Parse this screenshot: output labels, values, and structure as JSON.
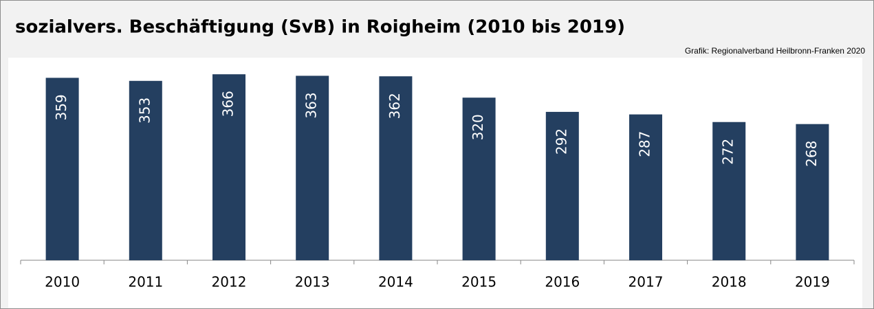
{
  "chart_data": {
    "type": "bar",
    "title": "sozialvers. Beschäftigung (SvB) in Roigheim (2010 bis 2019)",
    "source": "Grafik: Regionalverband Heilbronn-Franken 2020",
    "categories": [
      "2010",
      "2011",
      "2012",
      "2013",
      "2014",
      "2015",
      "2016",
      "2017",
      "2018",
      "2019"
    ],
    "values": [
      359,
      353,
      366,
      363,
      362,
      320,
      292,
      287,
      272,
      268
    ],
    "color": "#243f60",
    "ylim": [
      0,
      400
    ]
  }
}
